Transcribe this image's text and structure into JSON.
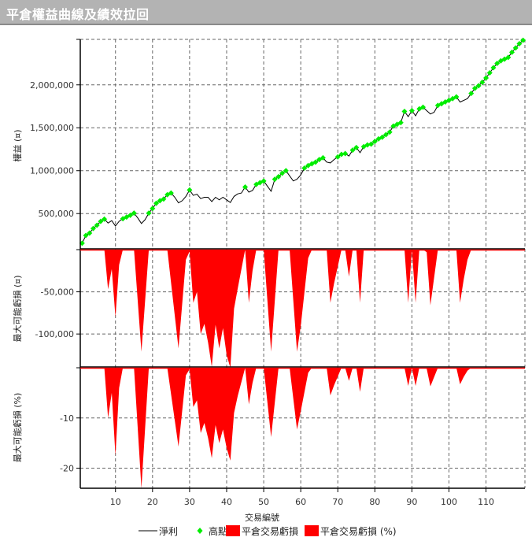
{
  "title": "平倉權益曲線及績效拉回",
  "chart_data": [
    {
      "type": "line",
      "ylabel": "權益 (¤)",
      "xlim": [
        0.5,
        120.5
      ],
      "ylim": [
        80000,
        2530000
      ],
      "grid": true,
      "yticks": [
        500000,
        1000000,
        1500000,
        2000000
      ],
      "ytick_labels": [
        "500,000",
        "1,000,000",
        "1,500,000",
        "2,000,000"
      ],
      "series": [
        {
          "name": "淨利",
          "color": "#000000",
          "values": [
            155000,
            245000,
            273000,
            327000,
            364000,
            409000,
            436000,
            390000,
            418000,
            355000,
            410000,
            440000,
            460000,
            480000,
            505000,
            450000,
            385000,
            430000,
            505000,
            560000,
            620000,
            650000,
            670000,
            720000,
            740000,
            690000,
            625000,
            650000,
            700000,
            775000,
            712000,
            725000,
            675000,
            690000,
            690000,
            640000,
            690000,
            660000,
            690000,
            660000,
            630000,
            700000,
            730000,
            740000,
            810000,
            750000,
            770000,
            840000,
            860000,
            880000,
            820000,
            760000,
            900000,
            930000,
            970000,
            1000000,
            940000,
            880000,
            900000,
            950000,
            1030000,
            1060000,
            1080000,
            1100000,
            1130000,
            1150000,
            1100000,
            1090000,
            1130000,
            1160000,
            1190000,
            1200000,
            1170000,
            1240000,
            1270000,
            1210000,
            1280000,
            1300000,
            1310000,
            1340000,
            1370000,
            1390000,
            1420000,
            1450000,
            1520000,
            1540000,
            1560000,
            1690000,
            1630000,
            1700000,
            1640000,
            1720000,
            1740000,
            1700000,
            1660000,
            1680000,
            1760000,
            1780000,
            1800000,
            1820000,
            1840000,
            1860000,
            1800000,
            1820000,
            1840000,
            1900000,
            1960000,
            1990000,
            2030000,
            2080000,
            2140000,
            2200000,
            2250000,
            2280000,
            2300000,
            2320000,
            2380000,
            2430000,
            2480000,
            2520000
          ]
        },
        {
          "name": "高點",
          "color": "#00ee00",
          "marker": "diamond"
        }
      ]
    },
    {
      "type": "area",
      "ylabel": "最大可能虧損 (¤)",
      "xlim": [
        0.5,
        120.5
      ],
      "ylim": [
        -140000,
        0
      ],
      "grid": true,
      "yticks": [
        -50000,
        -100000
      ],
      "ytick_labels": [
        "-50,000",
        "-100,000"
      ],
      "series": [
        {
          "name": "平倉交易虧損",
          "color": "#ff0000",
          "points": [
            [
              7,
              0
            ],
            [
              8,
              -47000
            ],
            [
              9,
              -23000
            ],
            [
              10,
              -80000
            ],
            [
              11,
              -18000
            ],
            [
              12,
              0
            ],
            [
              15,
              0
            ],
            [
              17,
              -121000
            ],
            [
              19,
              0
            ],
            [
              24,
              0
            ],
            [
              27,
              -117000
            ],
            [
              29,
              -12000
            ],
            [
              30,
              -2000
            ],
            [
              31,
              -63000
            ],
            [
              32,
              -50000
            ],
            [
              33,
              -100000
            ],
            [
              34,
              -88000
            ],
            [
              35,
              -110000
            ],
            [
              36,
              -139000
            ],
            [
              37,
              -89000
            ],
            [
              38,
              -117000
            ],
            [
              39,
              -93000
            ],
            [
              40,
              -125000
            ],
            [
              41,
              -143000
            ],
            [
              42,
              -70000
            ],
            [
              43,
              -46000
            ],
            [
              45,
              0
            ],
            [
              46,
              -63000
            ],
            [
              47,
              -25000
            ],
            [
              48,
              0
            ],
            [
              50,
              0
            ],
            [
              52,
              -121000
            ],
            [
              54,
              0
            ],
            [
              57,
              0
            ],
            [
              59,
              -121000
            ],
            [
              60,
              -91000
            ],
            [
              62,
              -10000
            ],
            [
              63,
              0
            ],
            [
              67,
              0
            ],
            [
              68,
              -63000
            ],
            [
              69,
              -40000
            ],
            [
              71,
              0
            ],
            [
              72,
              0
            ],
            [
              73,
              -32000
            ],
            [
              74,
              0
            ],
            [
              75,
              0
            ],
            [
              76,
              -63000
            ],
            [
              77,
              0
            ],
            [
              88,
              0
            ],
            [
              89,
              -63000
            ],
            [
              90,
              0
            ],
            [
              91,
              -63000
            ],
            [
              92,
              0
            ],
            [
              93,
              0
            ],
            [
              94,
              -3000
            ],
            [
              95,
              -66000
            ],
            [
              97,
              0
            ],
            [
              102,
              0
            ],
            [
              103,
              -63000
            ],
            [
              104,
              -35000
            ],
            [
              105,
              -12000
            ],
            [
              106,
              0
            ]
          ]
        }
      ]
    },
    {
      "type": "area",
      "ylabel": "最大可能虧損 (%)",
      "xlabel": "交易編號",
      "xlim": [
        0.5,
        120.5
      ],
      "ylim": [
        -24,
        0
      ],
      "grid": true,
      "yticks": [
        -10,
        -20
      ],
      "ytick_labels": [
        "-10",
        "-20"
      ],
      "xticks": [
        10,
        20,
        30,
        40,
        50,
        60,
        70,
        80,
        90,
        100,
        110
      ],
      "xtick_labels": [
        "10",
        "20",
        "30",
        "40",
        "50",
        "60",
        "70",
        "80",
        "90",
        "100",
        "110"
      ],
      "series": [
        {
          "name": "平倉交易虧損 (%)",
          "color": "#ff0000",
          "points": [
            [
              7,
              0
            ],
            [
              8,
              -10
            ],
            [
              9,
              -5
            ],
            [
              10,
              -17.5
            ],
            [
              11,
              -4
            ],
            [
              12,
              0
            ],
            [
              15,
              0
            ],
            [
              17,
              -24
            ],
            [
              19,
              0
            ],
            [
              24,
              0
            ],
            [
              27,
              -15.7
            ],
            [
              29,
              -1.5
            ],
            [
              30,
              -0.3
            ],
            [
              31,
              -7.8
            ],
            [
              32,
              -6.5
            ],
            [
              33,
              -13
            ],
            [
              34,
              -11
            ],
            [
              35,
              -14
            ],
            [
              36,
              -18
            ],
            [
              37,
              -11.4
            ],
            [
              38,
              -15
            ],
            [
              39,
              -12.3
            ],
            [
              40,
              -16
            ],
            [
              41,
              -18.5
            ],
            [
              42,
              -9
            ],
            [
              43,
              -5.6
            ],
            [
              45,
              0
            ],
            [
              46,
              -7.3
            ],
            [
              47,
              -3
            ],
            [
              48,
              0
            ],
            [
              50,
              0
            ],
            [
              52,
              -13.8
            ],
            [
              54,
              0
            ],
            [
              57,
              0
            ],
            [
              59,
              -12.3
            ],
            [
              60,
              -8.7
            ],
            [
              62,
              -1
            ],
            [
              63,
              0
            ],
            [
              67,
              0
            ],
            [
              68,
              -5.5
            ],
            [
              69,
              -3.5
            ],
            [
              71,
              0
            ],
            [
              72,
              0
            ],
            [
              73,
              -2.6
            ],
            [
              74,
              0
            ],
            [
              75,
              0
            ],
            [
              76,
              -4.8
            ],
            [
              77,
              0
            ],
            [
              88,
              0
            ],
            [
              89,
              -3.6
            ],
            [
              90,
              0
            ],
            [
              91,
              -3.6
            ],
            [
              92,
              0
            ],
            [
              93,
              0
            ],
            [
              94,
              -0.2
            ],
            [
              95,
              -3.7
            ],
            [
              97,
              0
            ],
            [
              102,
              0
            ],
            [
              103,
              -3.3
            ],
            [
              104,
              -1.8
            ],
            [
              105,
              -0.6
            ],
            [
              106,
              0
            ]
          ]
        }
      ]
    }
  ],
  "legend": {
    "items": [
      {
        "label": "淨利",
        "color": "#000000",
        "kind": "line"
      },
      {
        "label": "高點",
        "color": "#00ee00",
        "kind": "diamond"
      },
      {
        "label": "平倉交易虧損",
        "color": "#ff0000",
        "kind": "box"
      },
      {
        "label": "平倉交易虧損 (%)",
        "color": "#ff0000",
        "kind": "box"
      }
    ]
  }
}
